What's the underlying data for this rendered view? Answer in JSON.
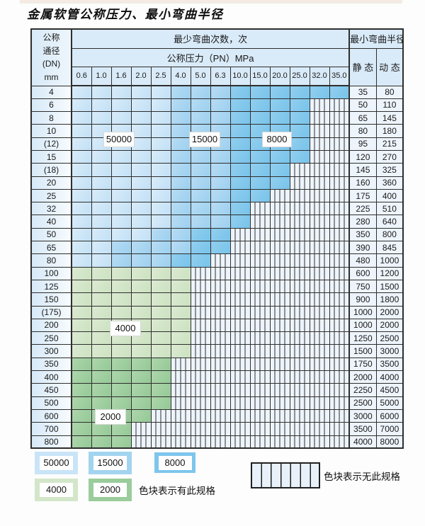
{
  "title": "金属软管公称压力、最小弯曲半径",
  "table": {
    "dn_header_lines": [
      "公称",
      "通径",
      "(DN)",
      "mm"
    ],
    "cycles_header": "最少弯曲次数，次",
    "pressure_header": "公称压力（PN）MPa",
    "radius_header": "最小弯曲半径",
    "static_header": "静 态",
    "dynamic_header": "动 态",
    "pressures": [
      "0.6",
      "1.0",
      "1.6",
      "2.0",
      "2.5",
      "4.0",
      "5.0",
      "6.3",
      "10.0",
      "15.0",
      "20.0",
      "25.0",
      "32.0",
      "35.0"
    ],
    "rows": [
      {
        "dn": "4",
        "static": "35",
        "dynamic": "80",
        "l": 5,
        "m": 3,
        "d": 6
      },
      {
        "dn": "6",
        "static": "50",
        "dynamic": "110",
        "l": 5,
        "m": 3,
        "d": 4
      },
      {
        "dn": "8",
        "static": "65",
        "dynamic": "145",
        "l": 5,
        "m": 3,
        "d": 4
      },
      {
        "dn": "10",
        "static": "80",
        "dynamic": "180",
        "l": 5,
        "m": 3,
        "d": 4
      },
      {
        "dn": "(12)",
        "static": "95",
        "dynamic": "215",
        "l": 5,
        "m": 3,
        "d": 4
      },
      {
        "dn": "15",
        "static": "120",
        "dynamic": "270",
        "l": 5,
        "m": 3,
        "d": 4
      },
      {
        "dn": "(18)",
        "static": "145",
        "dynamic": "325",
        "l": 5,
        "m": 3,
        "d": 3
      },
      {
        "dn": "20",
        "static": "160",
        "dynamic": "360",
        "l": 5,
        "m": 3,
        "d": 3
      },
      {
        "dn": "25",
        "static": "175",
        "dynamic": "400",
        "l": 5,
        "m": 3,
        "d": 2
      },
      {
        "dn": "32",
        "static": "225",
        "dynamic": "510",
        "l": 5,
        "m": 3,
        "d": 1
      },
      {
        "dn": "40",
        "static": "280",
        "dynamic": "640",
        "l": 5,
        "m": 3,
        "d": 1
      },
      {
        "dn": "50",
        "static": "350",
        "dynamic": "800",
        "l": 4,
        "m": 2,
        "d": 2
      },
      {
        "dn": "65",
        "static": "390",
        "dynamic": "845",
        "l": 2,
        "m": 4,
        "d": 2
      },
      {
        "dn": "80",
        "static": "480",
        "dynamic": "1000",
        "l": 2,
        "m": 3,
        "d": 2
      },
      {
        "dn": "100",
        "static": "600",
        "dynamic": "1200",
        "g4": 6
      },
      {
        "dn": "125",
        "static": "750",
        "dynamic": "1500",
        "g4": 6
      },
      {
        "dn": "150",
        "static": "900",
        "dynamic": "1800",
        "g4": 6
      },
      {
        "dn": "(175)",
        "static": "1000",
        "dynamic": "2000",
        "g4": 6
      },
      {
        "dn": "200",
        "static": "1000",
        "dynamic": "2000",
        "g4": 6
      },
      {
        "dn": "250",
        "static": "1250",
        "dynamic": "2500",
        "g4": 6
      },
      {
        "dn": "300",
        "static": "1500",
        "dynamic": "3000",
        "g4": 6
      },
      {
        "dn": "350",
        "static": "1750",
        "dynamic": "3500",
        "g2": 5
      },
      {
        "dn": "400",
        "static": "2000",
        "dynamic": "4000",
        "g2": 5
      },
      {
        "dn": "450",
        "static": "2250",
        "dynamic": "4500",
        "g2": 5
      },
      {
        "dn": "500",
        "static": "2500",
        "dynamic": "5000",
        "g2": 5
      },
      {
        "dn": "600",
        "static": "3000",
        "dynamic": "6000",
        "g2": 4
      },
      {
        "dn": "700",
        "static": "3500",
        "dynamic": "7000",
        "g2": 3
      },
      {
        "dn": "800",
        "static": "4000",
        "dynamic": "8000",
        "g2": 3
      }
    ]
  },
  "overlays": [
    {
      "text": "50000"
    },
    {
      "text": "15000"
    },
    {
      "text": "8000"
    },
    {
      "text": "4000"
    },
    {
      "text": "2000"
    }
  ],
  "legend": {
    "items": [
      {
        "label": "50000",
        "color": "#c9e4f7"
      },
      {
        "label": "15000",
        "color": "#a2d4f0"
      },
      {
        "label": "8000",
        "color": "#7ec6ec"
      },
      {
        "label": "4000",
        "color": "#d3e6ca"
      },
      {
        "label": "2000",
        "color": "#9acc9c"
      }
    ],
    "has_spec_note": "色块表示有此规格",
    "no_spec_note": "色块表示无此规格"
  },
  "colors": {
    "zone_50000": "#c9e4f7",
    "zone_15000": "#a2d4f0",
    "zone_8000": "#7ec6ec",
    "zone_4000": "#d3e6ca",
    "zone_2000": "#9acc9c",
    "no_spec_bg": "#edf4fb",
    "header_bg": "#d9eaf8",
    "grid_line": "#2e2e2e"
  }
}
